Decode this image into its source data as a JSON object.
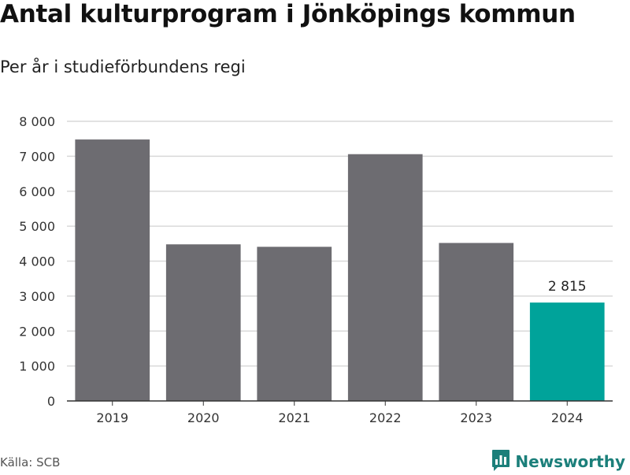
{
  "header": {
    "title": "Antal kulturprogram i Jönköpings kommun",
    "subtitle": "Per år i studieförbundens regi"
  },
  "footer": {
    "source": "Källa: SCB",
    "brand_name": "Newsworthy",
    "brand_icon": "newsworthy-logo-icon"
  },
  "colors": {
    "bar": "#6d6c71",
    "highlight": "#00a39a",
    "grid": "#d9d9d9",
    "axis": "#333333",
    "brand": "#1b7f7a"
  },
  "chart_data": {
    "type": "bar",
    "categories": [
      "2019",
      "2020",
      "2021",
      "2022",
      "2023",
      "2024"
    ],
    "values": [
      7480,
      4480,
      4410,
      7060,
      4520,
      2815
    ],
    "highlight_index": 5,
    "data_labels": [
      null,
      null,
      null,
      null,
      null,
      "2 815"
    ],
    "ylim": [
      0,
      8000
    ],
    "yticks": [
      0,
      1000,
      2000,
      3000,
      4000,
      5000,
      6000,
      7000,
      8000
    ],
    "ytick_labels": [
      "0",
      "1 000",
      "2 000",
      "3 000",
      "4 000",
      "5 000",
      "6 000",
      "7 000",
      "8 000"
    ],
    "grid": true,
    "legend": "none",
    "xlabel": "",
    "ylabel": ""
  }
}
